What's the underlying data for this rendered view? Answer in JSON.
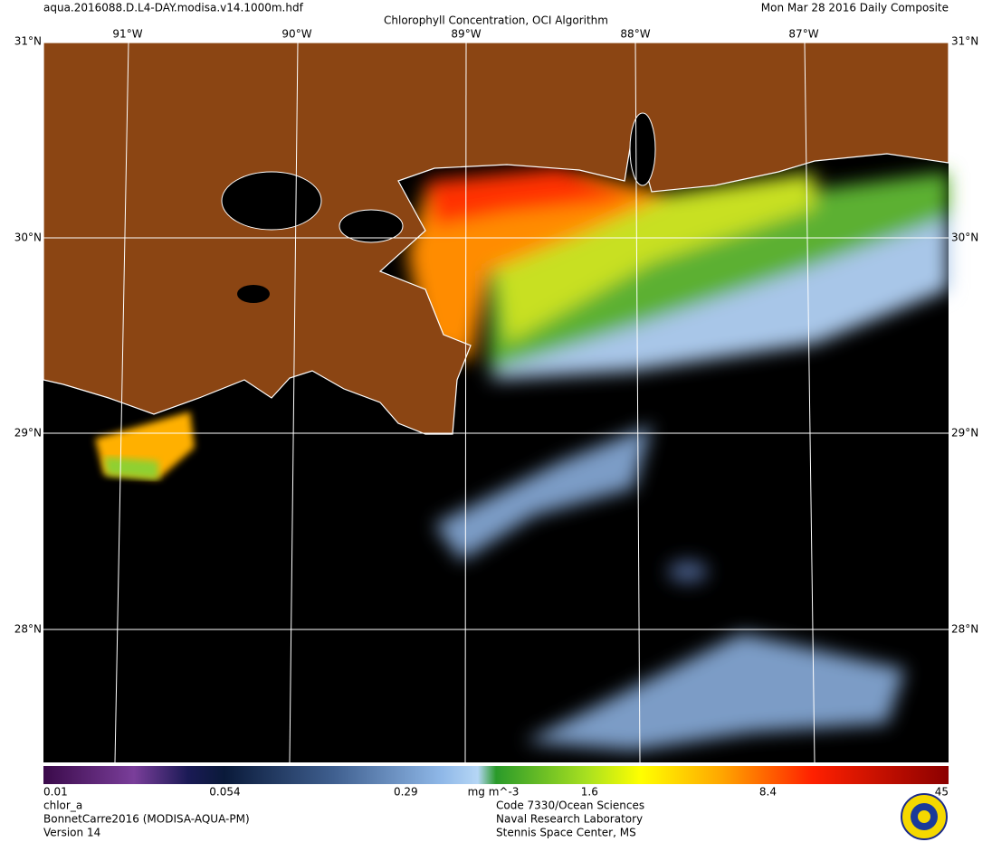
{
  "header": {
    "file": "aqua.2016088.D.L4-DAY.modisa.v14.1000m.hdf",
    "title": "Chlorophyll Concentration, OCI Algorithm",
    "date": "Mon Mar 28 2016 Daily Composite"
  },
  "map": {
    "lon_labels": [
      "91°W",
      "90°W",
      "89°W",
      "88°W",
      "87°W"
    ],
    "lat_labels": [
      "31°N",
      "30°N",
      "29°N",
      "28°N"
    ]
  },
  "colorbar": {
    "ticks": [
      0.01,
      0.054,
      0.29,
      1.6,
      8.4,
      45
    ],
    "units": "mg m^-3",
    "log_scale": true
  },
  "footer": {
    "left": [
      "chlor_a",
      "BonnetCarre2016 (MODISA-AQUA-PM)",
      "Version 14"
    ],
    "center": [
      "Code 7330/Ocean Sciences",
      "Naval Research Laboratory",
      "Stennis Space Center, MS"
    ]
  }
}
